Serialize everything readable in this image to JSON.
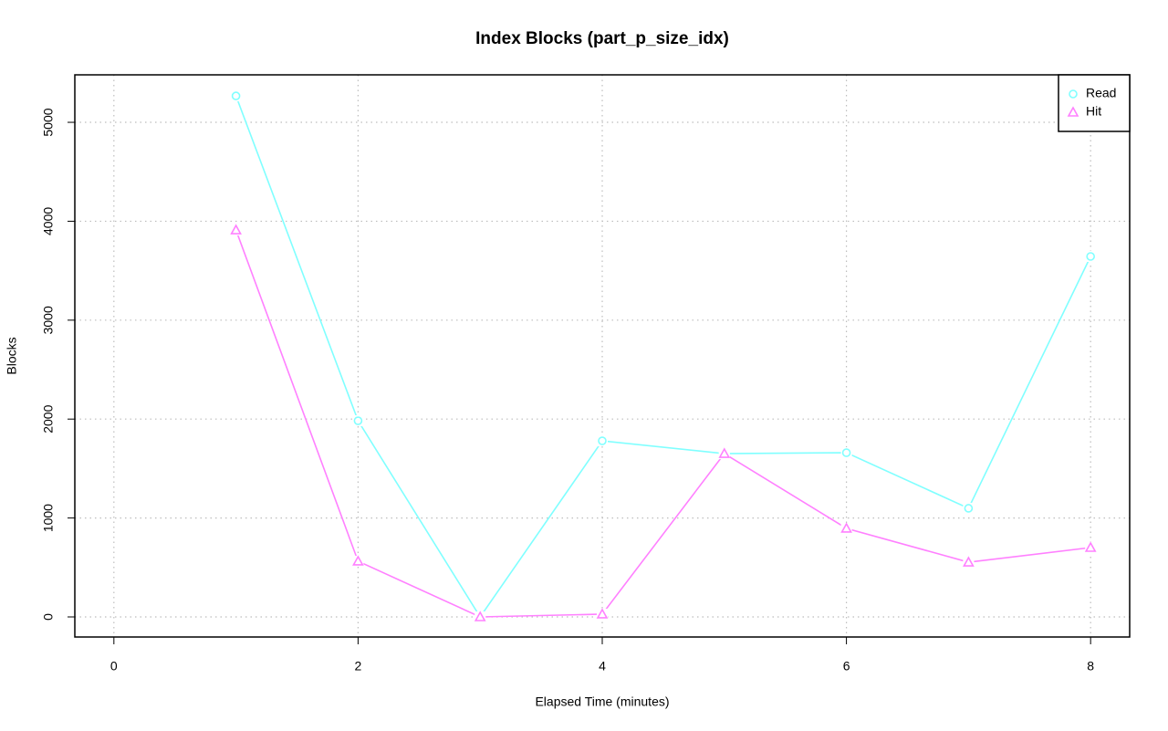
{
  "chart_data": {
    "type": "line",
    "title": "Index Blocks (part_p_size_idx)",
    "x_label": "Elapsed Time (minutes)",
    "y_label": "Blocks",
    "x": [
      1,
      2,
      3,
      4,
      5,
      6,
      7,
      8
    ],
    "series": [
      {
        "name": "Read",
        "color": "#80ffff",
        "marker": "circle",
        "values": [
          5267,
          1983,
          0,
          1780,
          1651,
          1660,
          1098,
          3644
        ]
      },
      {
        "name": "Hit",
        "color": "#ff80ff",
        "marker": "triangle",
        "values": [
          3911,
          563,
          0,
          28,
          1651,
          895,
          553,
          701
        ]
      }
    ],
    "xlim": [
      -0.32,
      8.32
    ],
    "xticks": [
      0,
      2,
      4,
      6,
      8
    ],
    "ylim": [
      -203,
      5480
    ],
    "yticks": [
      0,
      1000,
      2000,
      3000,
      4000,
      5000
    ],
    "grid": true,
    "legend": "top-right"
  }
}
